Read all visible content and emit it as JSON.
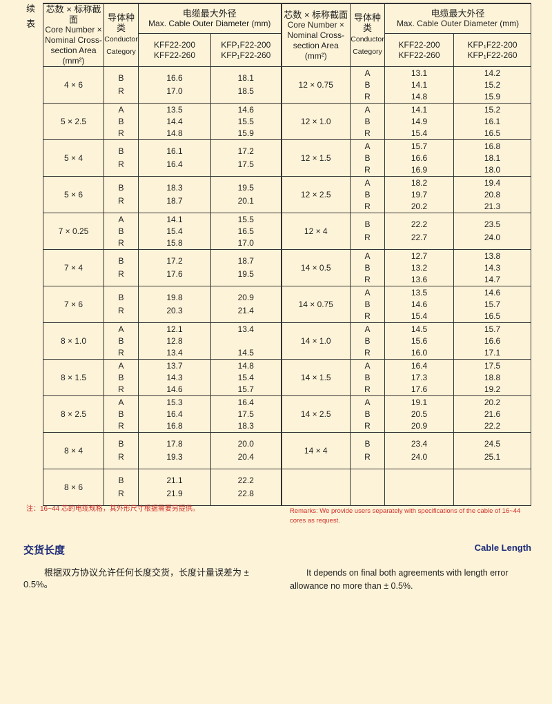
{
  "continued_label": "续表",
  "header": {
    "size_zh": "芯数 × 标称截面",
    "size_en": "Core Number × Nominal Cross-section Area",
    "size_unit": "(mm²)",
    "cat_zh": "导体种类",
    "cat_en1": "Conductor",
    "cat_en2": "Category",
    "diam_zh": "电缆最大外径",
    "diam_en": "Max. Cable Outer Diameter (mm)",
    "kff1": "KFF22-200",
    "kff2": "KFF22-260",
    "kfp1": "KFP₁F22-200",
    "kfp2": "KFP₁F22-260"
  },
  "left_rows": [
    {
      "size": "4 × 6",
      "cats": [
        "B",
        "R"
      ],
      "kff": [
        "16.6",
        "17.0"
      ],
      "kfp": [
        "18.1",
        "18.5"
      ]
    },
    {
      "size": "5 × 2.5",
      "cats": [
        "A",
        "B",
        "R"
      ],
      "kff": [
        "13.5",
        "14.4",
        "14.8"
      ],
      "kfp": [
        "14.6",
        "15.5",
        "15.9"
      ]
    },
    {
      "size": "5 × 4",
      "cats": [
        "B",
        "R"
      ],
      "kff": [
        "16.1",
        "16.4"
      ],
      "kfp": [
        "17.2",
        "17.5"
      ]
    },
    {
      "size": "5 × 6",
      "cats": [
        "B",
        "R"
      ],
      "kff": [
        "18.3",
        "18.7"
      ],
      "kfp": [
        "19.5",
        "20.1"
      ]
    },
    {
      "size": "7 × 0.25",
      "cats": [
        "A",
        "B",
        "R"
      ],
      "kff": [
        "14.1",
        "15.4",
        "15.8"
      ],
      "kfp": [
        "15.5",
        "16.5",
        "17.0"
      ]
    },
    {
      "size": "7 × 4",
      "cats": [
        "B",
        "R"
      ],
      "kff": [
        "17.2",
        "17.6"
      ],
      "kfp": [
        "18.7",
        "19.5"
      ]
    },
    {
      "size": "7 × 6",
      "cats": [
        "B",
        "R"
      ],
      "kff": [
        "19.8",
        "20.3"
      ],
      "kfp": [
        "20.9",
        "21.4"
      ]
    },
    {
      "size": "8 × 1.0",
      "cats": [
        "A",
        "B",
        "R"
      ],
      "kff": [
        "12.1",
        "12.8",
        "13.4"
      ],
      "kfp": [
        "13.4",
        "",
        "14.5"
      ]
    },
    {
      "size": "8 × 1.5",
      "cats": [
        "A",
        "B",
        "R"
      ],
      "kff": [
        "13.7",
        "14.3",
        "14.6"
      ],
      "kfp": [
        "14.8",
        "15.4",
        "15.7"
      ]
    },
    {
      "size": "8 × 2.5",
      "cats": [
        "A",
        "B",
        "R"
      ],
      "kff": [
        "15.3",
        "16.4",
        "16.8"
      ],
      "kfp": [
        "16.4",
        "17.5",
        "18.3"
      ]
    },
    {
      "size": "8 × 4",
      "cats": [
        "B",
        "R"
      ],
      "kff": [
        "17.8",
        "19.3"
      ],
      "kfp": [
        "20.0",
        "20.4"
      ]
    },
    {
      "size": "8 × 6",
      "cats": [
        "B",
        "R"
      ],
      "kff": [
        "21.1",
        "21.9"
      ],
      "kfp": [
        "22.2",
        "22.8"
      ]
    }
  ],
  "right_rows": [
    {
      "size": "12 × 0.75",
      "cats": [
        "A",
        "B",
        "R"
      ],
      "kff": [
        "13.1",
        "14.1",
        "14.8"
      ],
      "kfp": [
        "14.2",
        "15.2",
        "15.9"
      ]
    },
    {
      "size": "12 × 1.0",
      "cats": [
        "A",
        "B",
        "R"
      ],
      "kff": [
        "14.1",
        "14.9",
        "15.4"
      ],
      "kfp": [
        "15.2",
        "16.1",
        "16.5"
      ]
    },
    {
      "size": "12 × 1.5",
      "cats": [
        "A",
        "B",
        "R"
      ],
      "kff": [
        "15.7",
        "16.6",
        "16.9"
      ],
      "kfp": [
        "16.8",
        "18.1",
        "18.0"
      ]
    },
    {
      "size": "12 × 2.5",
      "cats": [
        "A",
        "B",
        "R"
      ],
      "kff": [
        "18.2",
        "19.7",
        "20.2"
      ],
      "kfp": [
        "19.4",
        "20.8",
        "21.3"
      ]
    },
    {
      "size": "12 × 4",
      "cats": [
        "B",
        "R"
      ],
      "kff": [
        "22.2",
        "22.7"
      ],
      "kfp": [
        "23.5",
        "24.0"
      ]
    },
    {
      "size": "14 × 0.5",
      "cats": [
        "A",
        "B",
        "R"
      ],
      "kff": [
        "12.7",
        "13.2",
        "13.6"
      ],
      "kfp": [
        "13.8",
        "14.3",
        "14.7"
      ]
    },
    {
      "size": "14 × 0.75",
      "cats": [
        "A",
        "B",
        "R"
      ],
      "kff": [
        "13.5",
        "14.6",
        "15.4"
      ],
      "kfp": [
        "14.6",
        "15.7",
        "16.5"
      ]
    },
    {
      "size": "14 × 1.0",
      "cats": [
        "A",
        "B",
        "R"
      ],
      "kff": [
        "14.5",
        "15.6",
        "16.0"
      ],
      "kfp": [
        "15.7",
        "16.6",
        "17.1"
      ]
    },
    {
      "size": "14 × 1.5",
      "cats": [
        "A",
        "B",
        "R"
      ],
      "kff": [
        "16.4",
        "17.3",
        "17.6"
      ],
      "kfp": [
        "17.5",
        "18.8",
        "19.2"
      ]
    },
    {
      "size": "14 × 2.5",
      "cats": [
        "A",
        "B",
        "R"
      ],
      "kff": [
        "19.1",
        "20.5",
        "20.9"
      ],
      "kfp": [
        "20.2",
        "21.6",
        "22.2"
      ]
    },
    {
      "size": "14 × 4",
      "cats": [
        "B",
        "R"
      ],
      "kff": [
        "23.4",
        "24.0"
      ],
      "kfp": [
        "24.5",
        "25.1"
      ]
    },
    {
      "size": "",
      "cats": [],
      "kff": [],
      "kfp": []
    }
  ],
  "notes": {
    "zh": "注：16~44 芯的电缆规格，其外形尺寸根据需要另提供。",
    "en": "Remarks: We  provide users separately with specifications of the cable of 16~44  cores as request."
  },
  "cable_length": {
    "title_zh": "交货长度",
    "title_en": "Cable Length",
    "text_zh": "根据双方协议允许任何长度交货，长度计量误差为 ± 0.5%。",
    "text_en": "It depends on final both agreements with length error allowance no more than  ± 0.5%."
  },
  "colors": {
    "background": "#fdf3d8",
    "note_red": "#d0302a",
    "heading_blue": "#1c2a78"
  }
}
